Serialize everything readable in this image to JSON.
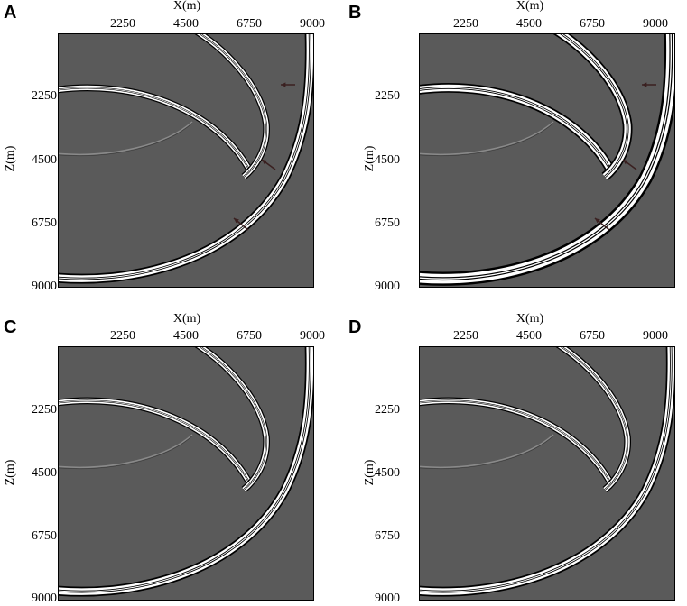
{
  "panels": [
    {
      "letter": "A",
      "xlabel": "X(m)",
      "ylabel": "Z(m)",
      "xticks": [
        "2250",
        "4500",
        "6750",
        "9000"
      ],
      "yticks": [
        "2250",
        "4500",
        "6750",
        "9000"
      ],
      "arrows": true
    },
    {
      "letter": "B",
      "xlabel": "X(m)",
      "ylabel": "Z(m)",
      "xticks": [
        "2250",
        "4500",
        "6750",
        "9000"
      ],
      "yticks": [
        "2250",
        "4500",
        "6750",
        "9000"
      ],
      "arrows": true
    },
    {
      "letter": "C",
      "xlabel": "X(m)",
      "ylabel": "Z(m)",
      "xticks": [
        "2250",
        "4500",
        "6750",
        "9000"
      ],
      "yticks": [
        "2250",
        "4500",
        "6750",
        "9000"
      ],
      "arrows": false
    },
    {
      "letter": "D",
      "xlabel": "X(m)",
      "ylabel": "Z(m)",
      "xticks": [
        "2250",
        "4500",
        "6750",
        "9000"
      ],
      "yticks": [
        "2250",
        "4500",
        "6750",
        "9000"
      ],
      "arrows": false
    }
  ],
  "colors": {
    "background": "#5a5a5a",
    "wavefront_light": "#ffffff",
    "wavefront_dark": "#000000",
    "arrow": "#3a2020"
  }
}
